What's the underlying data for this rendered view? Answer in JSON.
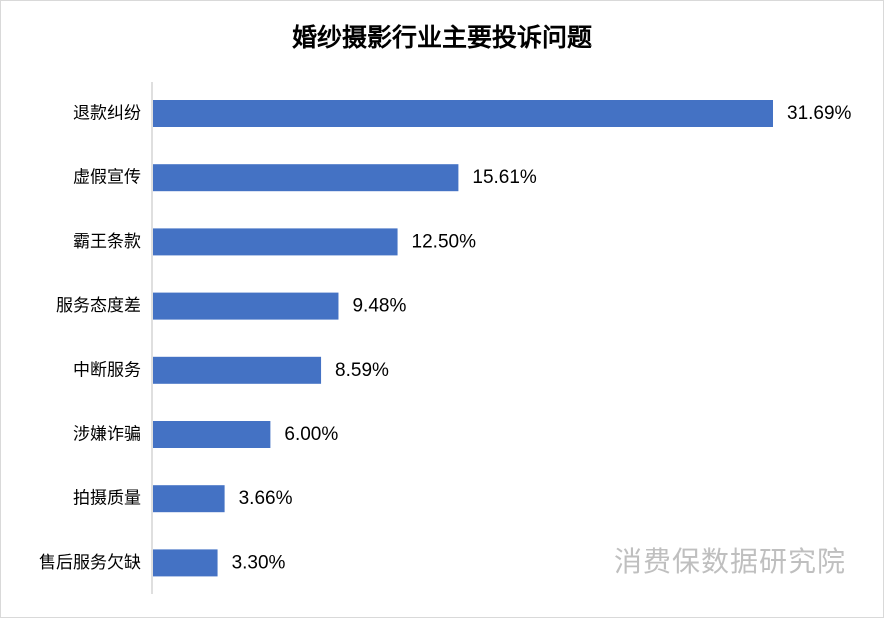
{
  "chart_data": {
    "type": "bar",
    "orientation": "horizontal",
    "title": "婚纱摄影行业主要投诉问题",
    "categories": [
      "退款纠纷",
      "虚假宣传",
      "霸王条款",
      "服务态度差",
      "中断服务",
      "涉嫌诈骗",
      "拍摄质量",
      "售后服务欠缺"
    ],
    "values": [
      31.69,
      15.61,
      12.5,
      9.48,
      8.59,
      6.0,
      3.66,
      3.3
    ],
    "value_labels": [
      "31.69%",
      "15.61%",
      "12.50%",
      "9.48%",
      "8.59%",
      "6.00%",
      "3.66%",
      "3.30%"
    ],
    "xlim": [
      0,
      31.69
    ],
    "grid": false,
    "legend": "none",
    "bar_color": "#4472c4"
  },
  "watermark": "消费保数据研究院"
}
